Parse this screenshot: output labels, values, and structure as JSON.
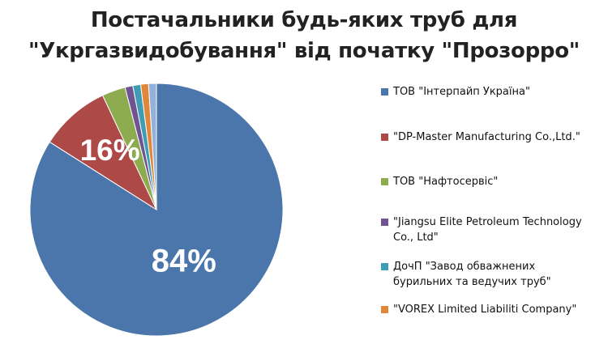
{
  "title_lines": [
    "Постачальники будь-яких труб для",
    "\"Укргазвидобування\" від початку \"Прозорро\""
  ],
  "chart_data": {
    "type": "pie",
    "title": "Постачальники будь-яких труб для \"Укргазвидобування\" від початку \"Прозорро\"",
    "slices": [
      {
        "name": "ТОВ \"Інтерпайп Україна\"",
        "value": 84,
        "label": "84%",
        "color": "#4A76AB"
      },
      {
        "name": "\"DP-Master Manufacturing Co.,Ltd.\"",
        "value": 9,
        "color": "#AD4A48"
      },
      {
        "name": "ТОВ \"Нафтосервіс\"",
        "value": 3,
        "color": "#8CAC4F"
      },
      {
        "name": "\"Jiangsu Elite Petroleum Technology Co., Ltd\"",
        "value": 1,
        "color": "#6F5392"
      },
      {
        "name": "ДочП \"Завод обважнених бурильних та ведучих труб\"",
        "value": 1,
        "color": "#3E9DB5"
      },
      {
        "name": "\"VOREX Limited Liabiliti Company\"",
        "value": 1,
        "color": "#E0873A"
      },
      {
        "name": "",
        "value": 1,
        "color": "#95B1D9"
      }
    ],
    "group_labels": [
      {
        "text": "16%",
        "covers_slices": [
          1,
          2,
          3,
          4,
          5,
          6
        ]
      }
    ],
    "legend_position": "right",
    "start_angle": "12 o'clock",
    "direction": "clockwise"
  },
  "legend": [
    {
      "lines": [
        "ТОВ \"Інтерпайп  Україна\""
      ],
      "color": "#4A76AB"
    },
    {
      "lines": [
        "\"DP-Master Manufacturing Co.,Ltd.\""
      ],
      "color": "#AD4A48"
    },
    {
      "lines": [
        "ТОВ \"Нафтосервіс\""
      ],
      "color": "#8CAC4F"
    },
    {
      "lines": [
        "\"Jiangsu Elite Petroleum Technology",
        "Co., Ltd\""
      ],
      "color": "#6F5392"
    },
    {
      "lines": [
        "ДочП \"Завод обважнених",
        "бурильних та ведучих труб\""
      ],
      "color": "#3E9DB5"
    },
    {
      "lines": [
        "\"VOREX Limited Liabiliti Company\""
      ],
      "color": "#E0873A"
    }
  ]
}
